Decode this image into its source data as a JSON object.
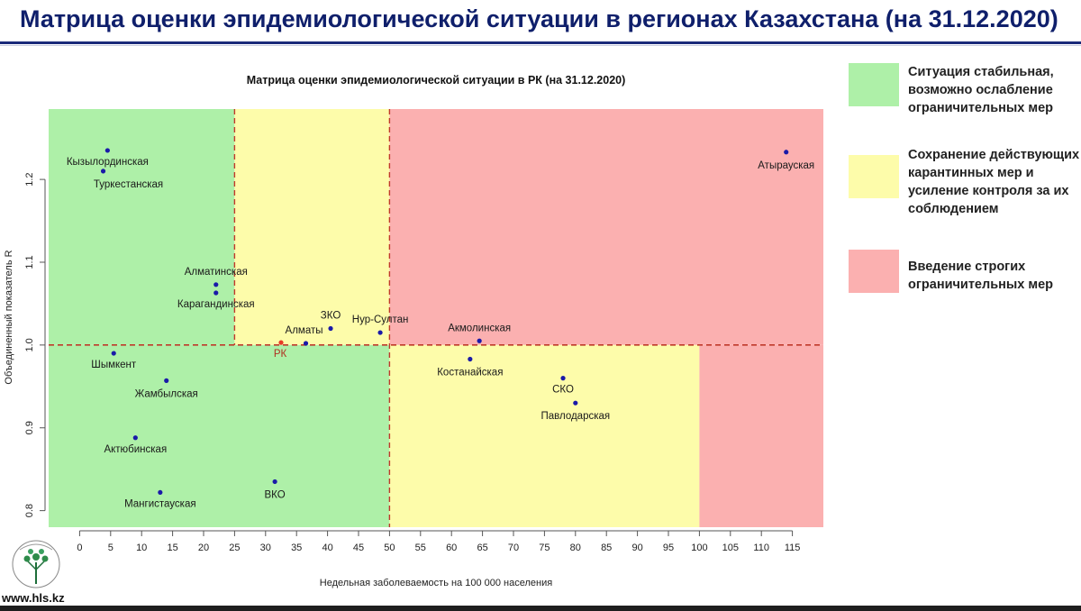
{
  "header": {
    "title": "Матрица оценки эпидемиологической ситуации в регионах Казахстана (на 31.12.2020)"
  },
  "legend": {
    "items": [
      {
        "color": "#aef0a8",
        "text": "Ситуация стабильная, возможно ослабление ограничительных мер"
      },
      {
        "color": "#fdfcaa",
        "text": "Сохранение действующих карантинных мер и усиление контроля за их соблюдением"
      },
      {
        "color": "#fbb0b0",
        "text": "Введение строгих ограничительных мер"
      }
    ]
  },
  "footer": {
    "site": "www.hls.kz"
  },
  "chart_data": {
    "type": "scatter",
    "title": "Матрица оценки эпидемиологической ситуации в РК (на 31.12.2020)",
    "xlabel": "Недельная заболеваемость на 100 000 населения",
    "ylabel": "Объединенный показатель R",
    "xlim": [
      -5,
      120
    ],
    "ylim": [
      0.78,
      1.285
    ],
    "xticks": [
      0,
      5,
      10,
      15,
      20,
      25,
      30,
      35,
      40,
      45,
      50,
      55,
      60,
      65,
      70,
      75,
      80,
      85,
      90,
      95,
      100,
      105,
      110,
      115
    ],
    "yticks": [
      0.8,
      0.9,
      1.0,
      1.1,
      1.2
    ],
    "threshold_y": 1.0,
    "vlines": [
      25,
      50,
      100
    ],
    "colors": {
      "green": "#aef0a8",
      "yellow": "#fdfcaa",
      "red": "#fbb0b0",
      "point": "#1a1aa8",
      "rk": "#e63c28",
      "dash": "#c0392b"
    },
    "points": [
      {
        "label": "Кызылординская",
        "x": 4.5,
        "y": 1.235
      },
      {
        "label": "Туркестанская",
        "x": 3.8,
        "y": 1.21
      },
      {
        "label": "Алматинская",
        "x": 22,
        "y": 1.073
      },
      {
        "label": "Карагандинская",
        "x": 22,
        "y": 1.063
      },
      {
        "label": "ЗКО",
        "x": 40.5,
        "y": 1.02
      },
      {
        "label": "Нур-Султан",
        "x": 48.5,
        "y": 1.015
      },
      {
        "label": "Алматы",
        "x": 36.5,
        "y": 1.002
      },
      {
        "label": "РК",
        "x": 32.5,
        "y": 1.003,
        "highlight": true
      },
      {
        "label": "Акмолинская",
        "x": 64.5,
        "y": 1.005
      },
      {
        "label": "Атырауская",
        "x": 114,
        "y": 1.233
      },
      {
        "label": "Шымкент",
        "x": 5.5,
        "y": 0.99
      },
      {
        "label": "Жамбылская",
        "x": 14,
        "y": 0.957
      },
      {
        "label": "Костанайская",
        "x": 63,
        "y": 0.983
      },
      {
        "label": "СКО",
        "x": 78,
        "y": 0.96
      },
      {
        "label": "Павлодарская",
        "x": 80,
        "y": 0.93
      },
      {
        "label": "Актюбинская",
        "x": 9,
        "y": 0.888
      },
      {
        "label": "ВКО",
        "x": 31.5,
        "y": 0.835
      },
      {
        "label": "Мангистауская",
        "x": 13,
        "y": 0.822
      }
    ]
  }
}
